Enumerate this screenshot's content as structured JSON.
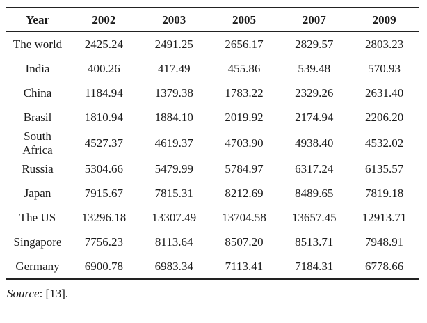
{
  "table": {
    "header": [
      "Year",
      "2002",
      "2003",
      "2005",
      "2007",
      "2009"
    ],
    "rows": [
      {
        "label": "The world",
        "values": [
          "2425.24",
          "2491.25",
          "2656.17",
          "2829.57",
          "2803.23"
        ]
      },
      {
        "label": "India",
        "values": [
          "400.26",
          "417.49",
          "455.86",
          "539.48",
          "570.93"
        ]
      },
      {
        "label": "China",
        "values": [
          "1184.94",
          "1379.38",
          "1783.22",
          "2329.26",
          "2631.40"
        ]
      },
      {
        "label": "Brasil",
        "values": [
          "1810.94",
          "1884.10",
          "2019.92",
          "2174.94",
          "2206.20"
        ]
      },
      {
        "label": "South Africa",
        "values": [
          "4527.37",
          "4619.37",
          "4703.90",
          "4938.40",
          "4532.02"
        ]
      },
      {
        "label": "Russia",
        "values": [
          "5304.66",
          "5479.99",
          "5784.97",
          "6317.24",
          "6135.57"
        ]
      },
      {
        "label": "Japan",
        "values": [
          "7915.67",
          "7815.31",
          "8212.69",
          "8489.65",
          "7819.18"
        ]
      },
      {
        "label": "The US",
        "values": [
          "13296.18",
          "13307.49",
          "13704.58",
          "13657.45",
          "12913.71"
        ]
      },
      {
        "label": "Singapore",
        "values": [
          "7756.23",
          "8113.64",
          "8507.20",
          "8513.71",
          "7948.91"
        ]
      },
      {
        "label": "Germany",
        "values": [
          "6900.78",
          "6983.34",
          "7113.41",
          "7184.31",
          "6778.66"
        ]
      }
    ]
  },
  "footer": {
    "source_label": "Source",
    "source_citation": ": [13]."
  },
  "colors": {
    "text": "#1a1a1a",
    "rule": "#222222",
    "background": "#ffffff"
  },
  "chart_data": {
    "type": "table",
    "title": "",
    "columns": [
      "Year",
      "2002",
      "2003",
      "2005",
      "2007",
      "2009"
    ],
    "categories": [
      "The world",
      "India",
      "China",
      "Brasil",
      "South Africa",
      "Russia",
      "Japan",
      "The US",
      "Singapore",
      "Germany"
    ],
    "series": [
      {
        "name": "2002",
        "values": [
          2425.24,
          400.26,
          1184.94,
          1810.94,
          4527.37,
          5304.66,
          7915.67,
          13296.18,
          7756.23,
          6900.78
        ]
      },
      {
        "name": "2003",
        "values": [
          2491.25,
          417.49,
          1379.38,
          1884.1,
          4619.37,
          5479.99,
          7815.31,
          13307.49,
          8113.64,
          6983.34
        ]
      },
      {
        "name": "2005",
        "values": [
          2656.17,
          455.86,
          1783.22,
          2019.92,
          4703.9,
          5784.97,
          8212.69,
          13704.58,
          8507.2,
          7113.41
        ]
      },
      {
        "name": "2007",
        "values": [
          2829.57,
          539.48,
          2329.26,
          2174.94,
          4938.4,
          6317.24,
          8489.65,
          13657.45,
          8513.71,
          7184.31
        ]
      },
      {
        "name": "2009",
        "values": [
          2803.23,
          570.93,
          2631.4,
          2206.2,
          4532.02,
          6135.57,
          7819.18,
          12913.71,
          7948.91,
          6778.66
        ]
      }
    ],
    "source": "Source: [13]."
  }
}
